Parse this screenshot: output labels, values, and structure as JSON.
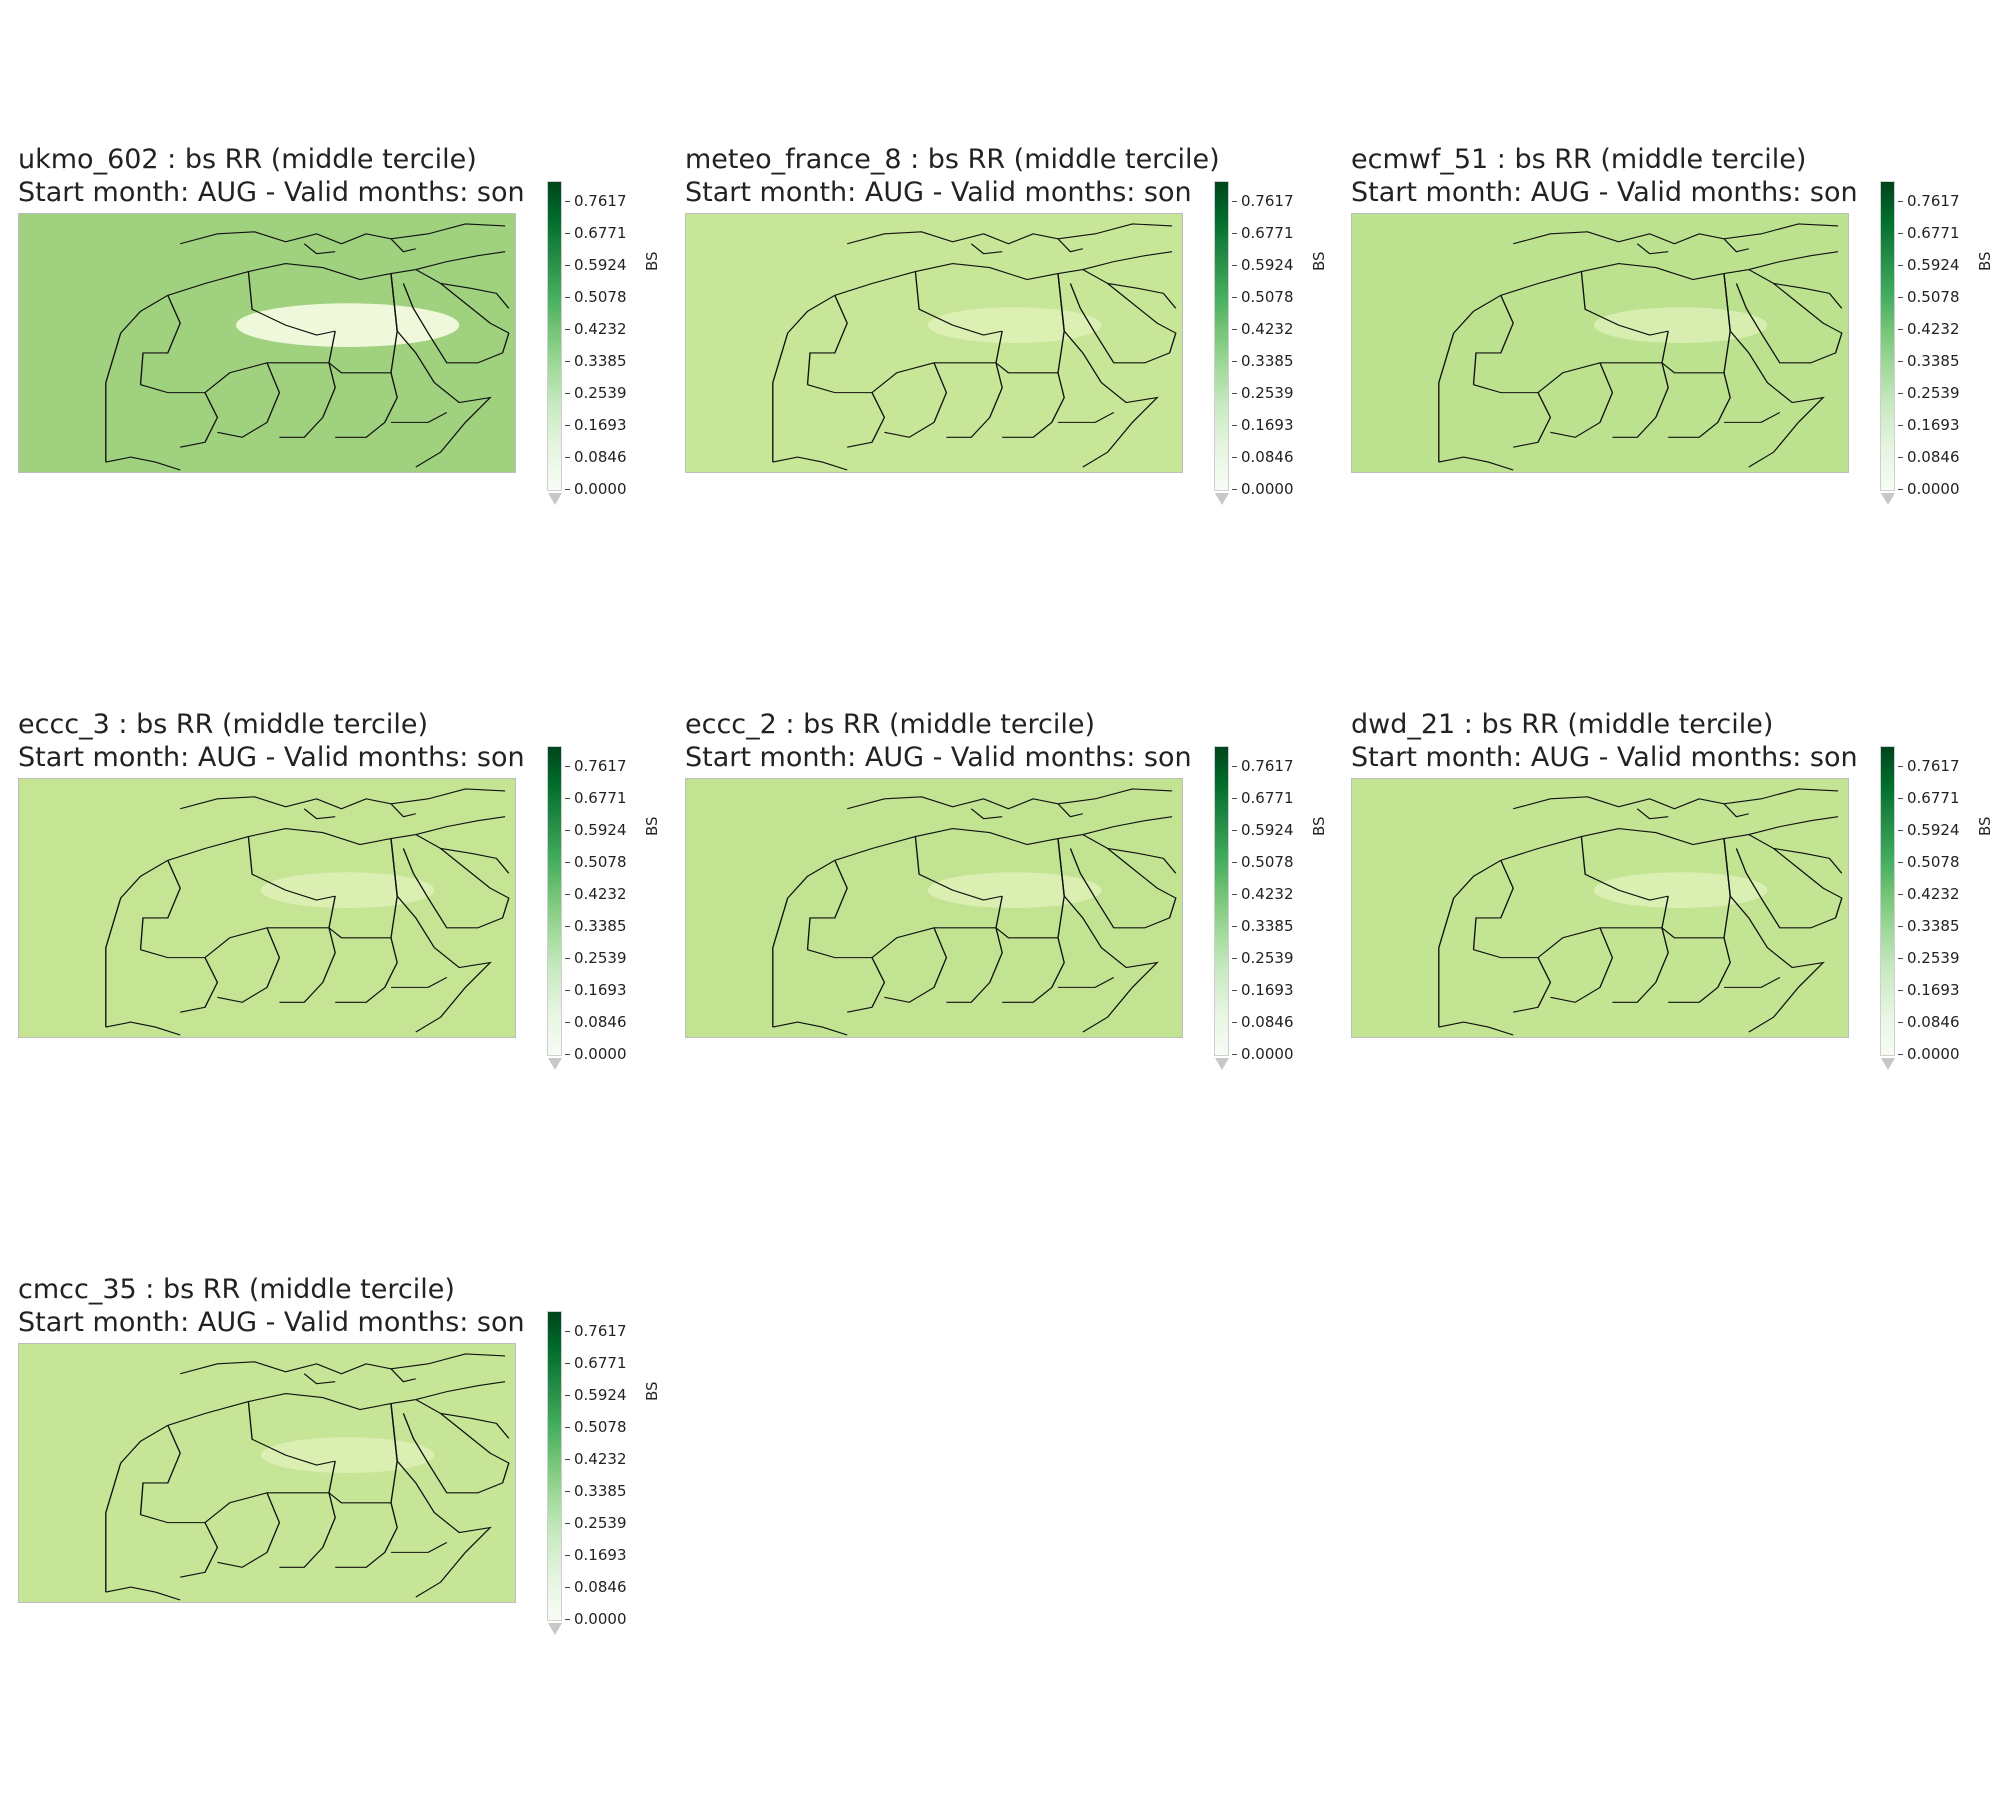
{
  "colorbar": {
    "label": "BS",
    "ticks": [
      "0.7617",
      "0.6771",
      "0.5924",
      "0.5078",
      "0.4232",
      "0.3385",
      "0.2539",
      "0.1693",
      "0.0846",
      "0.0000"
    ],
    "colormap": "Greens",
    "extend": "min"
  },
  "panels": [
    {
      "title": "ukmo_602 : bs  RR (middle tercile)",
      "subtitle": "Start month: AUG - Valid months: son",
      "fill": "#9fd17f"
    },
    {
      "title": "meteo_france_8 : bs  RR (middle tercile)",
      "subtitle": "Start month: AUG - Valid months: son",
      "fill": "#c8e697"
    },
    {
      "title": "ecmwf_51 : bs  RR (middle tercile)",
      "subtitle": "Start month: AUG - Valid months: son",
      "fill": "#bde28f"
    },
    {
      "title": "eccc_3 : bs  RR (middle tercile)",
      "subtitle": "Start month: AUG - Valid months: son",
      "fill": "#c5e595"
    },
    {
      "title": "eccc_2 : bs  RR (middle tercile)",
      "subtitle": "Start month: AUG - Valid months: son",
      "fill": "#c2e392"
    },
    {
      "title": "dwd_21 : bs  RR (middle tercile)",
      "subtitle": "Start month: AUG - Valid months: son",
      "fill": "#c3e493"
    },
    {
      "title": "cmcc_35 : bs  RR (middle tercile)",
      "subtitle": "Start month: AUG - Valid months: son",
      "fill": "#c6e596"
    }
  ]
}
